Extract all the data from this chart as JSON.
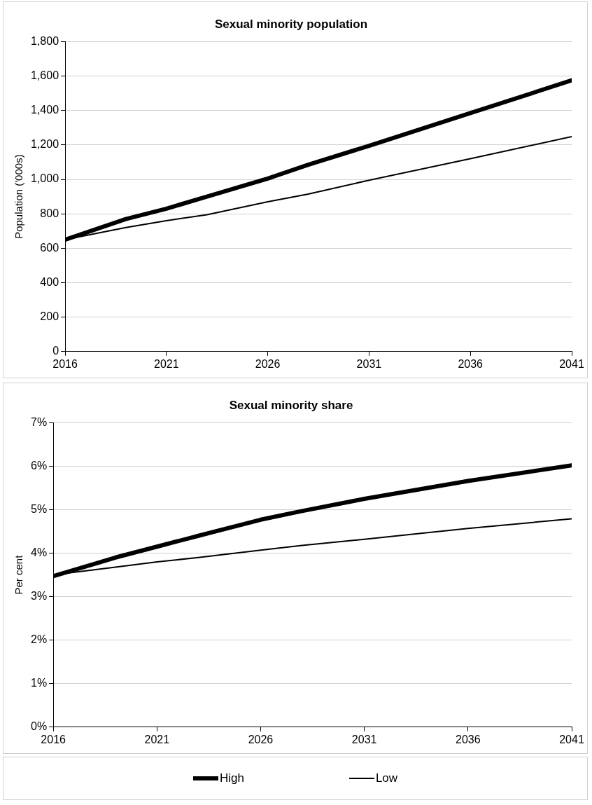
{
  "chart_data": [
    {
      "type": "line",
      "title": "Sexual minority population",
      "ylabel": "Population ('000s)",
      "x": [
        2016,
        2019,
        2021,
        2023,
        2026,
        2028,
        2031,
        2036,
        2041
      ],
      "series": [
        {
          "color": "#000000",
          "values": [
            650,
            770,
            830,
            900,
            1005,
            1085,
            1195,
            1385,
            1575
          ]
        },
        {
          "color": "#000000",
          "values": [
            650,
            720,
            760,
            795,
            870,
            915,
            995,
            1120,
            1248
          ]
        }
      ],
      "xlim": [
        2016,
        2041
      ],
      "xticks": [
        2016,
        2021,
        2026,
        2031,
        2036,
        2041
      ],
      "ylim": [
        0,
        1800
      ],
      "yticks": [
        0,
        200,
        400,
        600,
        800,
        {
          "value": 1000,
          "label": "1,000"
        },
        {
          "value": 1200,
          "label": "1,200"
        },
        {
          "value": 1400,
          "label": "1,400"
        },
        {
          "value": 1600,
          "label": "1,600"
        },
        {
          "value": 1800,
          "label": "1,800"
        }
      ],
      "grid": "y",
      "legend": false,
      "marker": "none"
    },
    {
      "type": "line",
      "title": "Sexual minority share",
      "ylabel": "Per cent",
      "x": [
        2016,
        2019,
        2021,
        2023,
        2026,
        2028,
        2031,
        2036,
        2041
      ],
      "series": [
        {
          "name": "High",
          "color": "#000000",
          "values": [
            3.47,
            3.9,
            4.15,
            4.4,
            4.77,
            4.97,
            5.25,
            5.66,
            6.02
          ]
        },
        {
          "name": "Low",
          "color": "#000000",
          "values": [
            3.5,
            3.68,
            3.8,
            3.9,
            4.07,
            4.18,
            4.32,
            4.57,
            4.79
          ]
        }
      ],
      "xlim": [
        2016,
        2041
      ],
      "xticks": [
        2016,
        2021,
        2026,
        2031,
        2036,
        2041
      ],
      "ylim": [
        0,
        7
      ],
      "yticks": [
        {
          "value": 0,
          "label": "0%"
        },
        {
          "value": 1,
          "label": "1%"
        },
        {
          "value": 2,
          "label": "2%"
        },
        {
          "value": 3,
          "label": "3%"
        },
        {
          "value": 4,
          "label": "4%"
        },
        {
          "value": 5,
          "label": "5%"
        },
        {
          "value": 6,
          "label": "6%"
        },
        {
          "value": 7,
          "label": "7%"
        }
      ],
      "grid": "y",
      "legend": "bottom",
      "marker": "none"
    }
  ]
}
